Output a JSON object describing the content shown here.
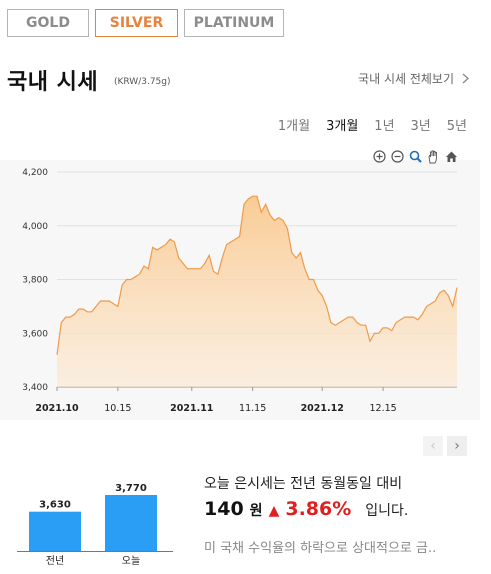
{
  "tabs": [
    {
      "label": "GOLD",
      "active": false
    },
    {
      "label": "SILVER",
      "active": true
    },
    {
      "label": "PLATINUM",
      "active": false
    }
  ],
  "header": {
    "title": "국내 시세",
    "unit": "(KRW/3.75g)",
    "view_all": "국내 시세 전체보기"
  },
  "periods": [
    {
      "label": "1개월",
      "active": false
    },
    {
      "label": "3개월",
      "active": true
    },
    {
      "label": "1년",
      "active": false
    },
    {
      "label": "3년",
      "active": false
    },
    {
      "label": "5년",
      "active": false
    }
  ],
  "toolbar": {
    "icons": [
      "zoom-in-icon",
      "zoom-out-icon",
      "zoom-icon",
      "pan-hand-icon",
      "home-icon"
    ]
  },
  "colors": {
    "accent": "#e9823a",
    "line": "#f09a4a",
    "fill": "#f9c98f",
    "bar": "#2a9df4",
    "up": "#e02020"
  },
  "chart_data": [
    {
      "type": "area",
      "y_ticks": [
        "4,200",
        "4,000",
        "3,800",
        "3,600",
        "3,400"
      ],
      "x_ticks": [
        {
          "date": "2021-10-01",
          "label": "2021.10",
          "bold": true
        },
        {
          "date": "2021-10-15",
          "label": "10.15",
          "bold": false
        },
        {
          "date": "2021-11-01",
          "label": "2021.11",
          "bold": true
        },
        {
          "date": "2021-11-15",
          "label": "11.15",
          "bold": false
        },
        {
          "date": "2021-12-01",
          "label": "2021.12",
          "bold": true
        },
        {
          "date": "2021-12-15",
          "label": "12.15",
          "bold": false
        }
      ],
      "ylim": [
        3400,
        4200
      ],
      "xlim": [
        "2021-10-01",
        "2022-01-01"
      ],
      "grid": true,
      "series": [
        {
          "points": [
            [
              "2021-10-01",
              3520
            ],
            [
              "2021-10-02",
              3640
            ],
            [
              "2021-10-03",
              3660
            ],
            [
              "2021-10-04",
              3660
            ],
            [
              "2021-10-05",
              3670
            ],
            [
              "2021-10-06",
              3690
            ],
            [
              "2021-10-07",
              3690
            ],
            [
              "2021-10-08",
              3680
            ],
            [
              "2021-10-09",
              3680
            ],
            [
              "2021-10-10",
              3700
            ],
            [
              "2021-10-11",
              3720
            ],
            [
              "2021-10-12",
              3720
            ],
            [
              "2021-10-13",
              3720
            ],
            [
              "2021-10-14",
              3710
            ],
            [
              "2021-10-15",
              3700
            ],
            [
              "2021-10-16",
              3780
            ],
            [
              "2021-10-17",
              3800
            ],
            [
              "2021-10-18",
              3800
            ],
            [
              "2021-10-19",
              3810
            ],
            [
              "2021-10-20",
              3820
            ],
            [
              "2021-10-21",
              3850
            ],
            [
              "2021-10-22",
              3840
            ],
            [
              "2021-10-23",
              3920
            ],
            [
              "2021-10-24",
              3910
            ],
            [
              "2021-10-25",
              3920
            ],
            [
              "2021-10-26",
              3930
            ],
            [
              "2021-10-27",
              3950
            ],
            [
              "2021-10-28",
              3940
            ],
            [
              "2021-10-29",
              3880
            ],
            [
              "2021-10-30",
              3860
            ],
            [
              "2021-10-31",
              3840
            ],
            [
              "2021-11-01",
              3840
            ],
            [
              "2021-11-02",
              3840
            ],
            [
              "2021-11-03",
              3840
            ],
            [
              "2021-11-04",
              3860
            ],
            [
              "2021-11-05",
              3890
            ],
            [
              "2021-11-06",
              3830
            ],
            [
              "2021-11-07",
              3820
            ],
            [
              "2021-11-08",
              3880
            ],
            [
              "2021-11-09",
              3930
            ],
            [
              "2021-11-10",
              3940
            ],
            [
              "2021-11-11",
              3950
            ],
            [
              "2021-11-12",
              3960
            ],
            [
              "2021-11-13",
              4080
            ],
            [
              "2021-11-14",
              4100
            ],
            [
              "2021-11-15",
              4110
            ],
            [
              "2021-11-16",
              4110
            ],
            [
              "2021-11-17",
              4050
            ],
            [
              "2021-11-18",
              4080
            ],
            [
              "2021-11-19",
              4040
            ],
            [
              "2021-11-20",
              4020
            ],
            [
              "2021-11-21",
              4030
            ],
            [
              "2021-11-22",
              4020
            ],
            [
              "2021-11-23",
              3990
            ],
            [
              "2021-11-24",
              3900
            ],
            [
              "2021-11-25",
              3880
            ],
            [
              "2021-11-26",
              3900
            ],
            [
              "2021-11-27",
              3840
            ],
            [
              "2021-11-28",
              3800
            ],
            [
              "2021-11-29",
              3800
            ],
            [
              "2021-11-30",
              3760
            ],
            [
              "2021-12-01",
              3740
            ],
            [
              "2021-12-02",
              3700
            ],
            [
              "2021-12-03",
              3640
            ],
            [
              "2021-12-04",
              3630
            ],
            [
              "2021-12-05",
              3640
            ],
            [
              "2021-12-06",
              3650
            ],
            [
              "2021-12-07",
              3660
            ],
            [
              "2021-12-08",
              3660
            ],
            [
              "2021-12-09",
              3640
            ],
            [
              "2021-12-10",
              3630
            ],
            [
              "2021-12-11",
              3630
            ],
            [
              "2021-12-12",
              3570
            ],
            [
              "2021-12-13",
              3600
            ],
            [
              "2021-12-14",
              3600
            ],
            [
              "2021-12-15",
              3620
            ],
            [
              "2021-12-16",
              3620
            ],
            [
              "2021-12-17",
              3610
            ],
            [
              "2021-12-18",
              3640
            ],
            [
              "2021-12-19",
              3650
            ],
            [
              "2021-12-20",
              3660
            ],
            [
              "2021-12-21",
              3660
            ],
            [
              "2021-12-22",
              3660
            ],
            [
              "2021-12-23",
              3650
            ],
            [
              "2021-12-24",
              3670
            ],
            [
              "2021-12-25",
              3700
            ],
            [
              "2021-12-26",
              3710
            ],
            [
              "2021-12-27",
              3720
            ],
            [
              "2021-12-28",
              3750
            ],
            [
              "2021-12-29",
              3760
            ],
            [
              "2021-12-30",
              3740
            ],
            [
              "2021-12-31",
              3700
            ],
            [
              "2022-01-01",
              3770
            ]
          ]
        }
      ]
    },
    {
      "type": "bar",
      "categories": [
        "전년",
        "오늘"
      ],
      "values": [
        3630,
        3770
      ],
      "value_labels": [
        "3,630",
        "3,770"
      ]
    }
  ],
  "pager": {
    "prev": "‹",
    "next": "›"
  },
  "summary": {
    "line1": "오늘 은시세는 전년 동월동일 대비",
    "diff": "140",
    "won": "원",
    "arrow": "▲",
    "pct": "3.86%",
    "tail": "입니다.",
    "news": "미 국채 수익율의 하락으로 상대적으로 금.."
  }
}
